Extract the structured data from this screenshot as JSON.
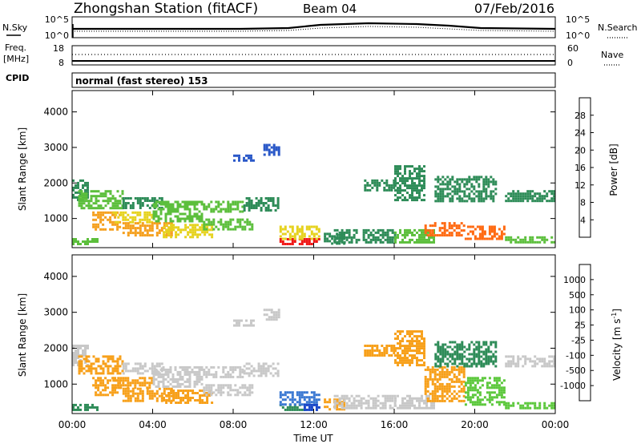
{
  "header": {
    "station_title": "Zhongshan Station (fitACF)",
    "beam": "Beam 04",
    "date": "07/Feb/2016"
  },
  "summary_panels": {
    "noise": {
      "left_label": "N.Sky",
      "right_label": "N.Search",
      "left_ticks": [
        "10^5",
        "10^0"
      ],
      "right_ticks": [
        "10^5",
        "10^0"
      ]
    },
    "frequency": {
      "left_label_line1": "Freq.",
      "left_label_line2": "[MHz]",
      "right_label": "Nave",
      "left_ticks": [
        "18",
        "8"
      ],
      "right_ticks": [
        "60",
        "0"
      ]
    },
    "cpid": {
      "label": "CPID",
      "mode_text": "normal (fast stereo) 153"
    }
  },
  "chart_data": [
    {
      "type": "heatmap",
      "title": "",
      "quantity": "Power",
      "xlabel": "",
      "ylabel": "Slant Range [km]",
      "xlim": [
        0,
        24
      ],
      "ylim": [
        180,
        4600
      ],
      "x_ticks": [
        "00:00",
        "04:00",
        "08:00",
        "12:00",
        "16:00",
        "20:00",
        "00:00"
      ],
      "y_ticks": [
        1000,
        2000,
        3000,
        4000
      ],
      "colorbar": {
        "label": "Power [dB]",
        "ticks": [
          "4",
          "8",
          "12",
          "16",
          "20",
          "24",
          "28"
        ],
        "levels": [
          0,
          4,
          8,
          12,
          16,
          20,
          24,
          28,
          32
        ],
        "colors": [
          "#0a1ef0",
          "#2a58c8",
          "#2e8c58",
          "#5cbf3c",
          "#e6d21e",
          "#f5a01e",
          "#ff6a12",
          "#f01818"
        ]
      },
      "regions": [
        {
          "t0": 0.0,
          "t1": 0.8,
          "r0": 1500,
          "r1": 2100,
          "value": 8
        },
        {
          "t0": 0.3,
          "t1": 2.5,
          "r0": 1300,
          "r1": 1800,
          "value": 14
        },
        {
          "t0": 1.0,
          "t1": 2.4,
          "r0": 700,
          "r1": 1200,
          "value": 22
        },
        {
          "t0": 0.0,
          "t1": 1.2,
          "r0": 300,
          "r1": 450,
          "value": 14
        },
        {
          "t0": 2.5,
          "t1": 4.5,
          "r0": 1300,
          "r1": 1600,
          "value": 8
        },
        {
          "t0": 2.0,
          "t1": 4.0,
          "r0": 900,
          "r1": 1200,
          "value": 16
        },
        {
          "t0": 2.5,
          "t1": 5.0,
          "r0": 500,
          "r1": 900,
          "value": 20
        },
        {
          "t0": 4.0,
          "t1": 6.5,
          "r0": 900,
          "r1": 1500,
          "value": 14
        },
        {
          "t0": 4.5,
          "t1": 7.0,
          "r0": 500,
          "r1": 850,
          "value": 18
        },
        {
          "t0": 6.5,
          "t1": 8.5,
          "r0": 1200,
          "r1": 1500,
          "value": 12
        },
        {
          "t0": 6.5,
          "t1": 9.0,
          "r0": 700,
          "r1": 1000,
          "value": 12
        },
        {
          "t0": 8.5,
          "t1": 10.2,
          "r0": 1200,
          "r1": 1600,
          "value": 10
        },
        {
          "t0": 8.0,
          "t1": 9.0,
          "r0": 2600,
          "r1": 2800,
          "value": 6
        },
        {
          "t0": 9.5,
          "t1": 10.3,
          "r0": 2800,
          "r1": 3100,
          "value": 6
        },
        {
          "t0": 10.3,
          "t1": 12.3,
          "r0": 250,
          "r1": 450,
          "value": 30
        },
        {
          "t0": 10.3,
          "t1": 12.3,
          "r0": 450,
          "r1": 800,
          "value": 18
        },
        {
          "t0": 12.5,
          "t1": 13.5,
          "r0": 300,
          "r1": 600,
          "value": 10
        },
        {
          "t0": 13.0,
          "t1": 16.0,
          "r0": 300,
          "r1": 700,
          "value": 10
        },
        {
          "t0": 14.5,
          "t1": 16.0,
          "r0": 1800,
          "r1": 2100,
          "value": 8
        },
        {
          "t0": 16.0,
          "t1": 17.5,
          "r0": 1500,
          "r1": 2500,
          "value": 10
        },
        {
          "t0": 16.0,
          "t1": 18.0,
          "r0": 300,
          "r1": 700,
          "value": 14
        },
        {
          "t0": 17.5,
          "t1": 19.5,
          "r0": 500,
          "r1": 900,
          "value": 24
        },
        {
          "t0": 18.0,
          "t1": 21.0,
          "r0": 1500,
          "r1": 2200,
          "value": 10
        },
        {
          "t0": 19.5,
          "t1": 21.5,
          "r0": 450,
          "r1": 800,
          "value": 26
        },
        {
          "t0": 21.5,
          "t1": 24.0,
          "r0": 1500,
          "r1": 1800,
          "value": 8
        },
        {
          "t0": 21.5,
          "t1": 24.0,
          "r0": 300,
          "r1": 500,
          "value": 14
        }
      ]
    },
    {
      "type": "heatmap",
      "title": "",
      "quantity": "Velocity",
      "xlabel": "Time UT",
      "ylabel": "Slant Range [km]",
      "xlim": [
        0,
        24
      ],
      "ylim": [
        180,
        4600
      ],
      "x_ticks": [
        "00:00",
        "04:00",
        "08:00",
        "12:00",
        "16:00",
        "20:00",
        "00:00"
      ],
      "y_ticks": [
        1000,
        2000,
        3000,
        4000
      ],
      "colorbar": {
        "label": "Velocity [m s^-1]",
        "ticks": [
          "1000",
          "500",
          "100",
          "25",
          "-25",
          "-100",
          "-500",
          "-1000"
        ],
        "levels": [
          1500,
          1000,
          500,
          100,
          25,
          -25,
          -100,
          -500,
          -1000,
          -1500
        ],
        "colors": [
          "#1846c8",
          "#3a78d2",
          "#2e8c58",
          "#5cc83c",
          "#c8c8c8",
          "#c8c8c8",
          "#f7a01a",
          "#f07818",
          "#f01818"
        ]
      },
      "regions": [
        {
          "t0": 0.0,
          "t1": 0.8,
          "r0": 1500,
          "r1": 2100,
          "value": 0
        },
        {
          "t0": 0.3,
          "t1": 2.5,
          "r0": 1300,
          "r1": 1800,
          "value": -300
        },
        {
          "t0": 1.0,
          "t1": 2.4,
          "r0": 700,
          "r1": 1200,
          "value": -300
        },
        {
          "t0": 0.0,
          "t1": 1.2,
          "r0": 300,
          "r1": 450,
          "value": 200
        },
        {
          "t0": 2.5,
          "t1": 4.5,
          "r0": 1300,
          "r1": 1600,
          "value": 0
        },
        {
          "t0": 2.0,
          "t1": 4.0,
          "r0": 900,
          "r1": 1200,
          "value": -300
        },
        {
          "t0": 2.5,
          "t1": 5.0,
          "r0": 500,
          "r1": 900,
          "value": -300
        },
        {
          "t0": 4.0,
          "t1": 6.5,
          "r0": 900,
          "r1": 1500,
          "value": 0
        },
        {
          "t0": 4.5,
          "t1": 7.0,
          "r0": 500,
          "r1": 850,
          "value": -200
        },
        {
          "t0": 6.5,
          "t1": 8.5,
          "r0": 1200,
          "r1": 1500,
          "value": 0
        },
        {
          "t0": 6.5,
          "t1": 9.0,
          "r0": 700,
          "r1": 1000,
          "value": 0
        },
        {
          "t0": 8.5,
          "t1": 10.2,
          "r0": 1200,
          "r1": 1600,
          "value": 0
        },
        {
          "t0": 8.0,
          "t1": 9.0,
          "r0": 2600,
          "r1": 2800,
          "value": 0
        },
        {
          "t0": 9.5,
          "t1": 10.3,
          "r0": 2800,
          "r1": 3100,
          "value": 0
        },
        {
          "t0": 10.3,
          "t1": 11.5,
          "r0": 250,
          "r1": 450,
          "value": 200
        },
        {
          "t0": 10.3,
          "t1": 12.3,
          "r0": 450,
          "r1": 800,
          "value": 600
        },
        {
          "t0": 11.5,
          "t1": 12.3,
          "r0": 250,
          "r1": 450,
          "value": 1200
        },
        {
          "t0": 12.5,
          "t1": 13.5,
          "r0": 300,
          "r1": 600,
          "value": -200
        },
        {
          "t0": 13.0,
          "t1": 16.0,
          "r0": 300,
          "r1": 700,
          "value": 0
        },
        {
          "t0": 14.5,
          "t1": 16.0,
          "r0": 1800,
          "r1": 2100,
          "value": -200
        },
        {
          "t0": 16.0,
          "t1": 17.5,
          "r0": 1500,
          "r1": 2500,
          "value": -300
        },
        {
          "t0": 16.0,
          "t1": 18.0,
          "r0": 300,
          "r1": 700,
          "value": 0
        },
        {
          "t0": 17.5,
          "t1": 19.5,
          "r0": 500,
          "r1": 1500,
          "value": -300
        },
        {
          "t0": 18.0,
          "t1": 21.0,
          "r0": 1500,
          "r1": 2200,
          "value": 200
        },
        {
          "t0": 19.5,
          "t1": 21.5,
          "r0": 450,
          "r1": 1200,
          "value": 50
        },
        {
          "t0": 21.5,
          "t1": 24.0,
          "r0": 1500,
          "r1": 1800,
          "value": 0
        },
        {
          "t0": 21.5,
          "t1": 24.0,
          "r0": 300,
          "r1": 500,
          "value": 60
        }
      ]
    }
  ]
}
